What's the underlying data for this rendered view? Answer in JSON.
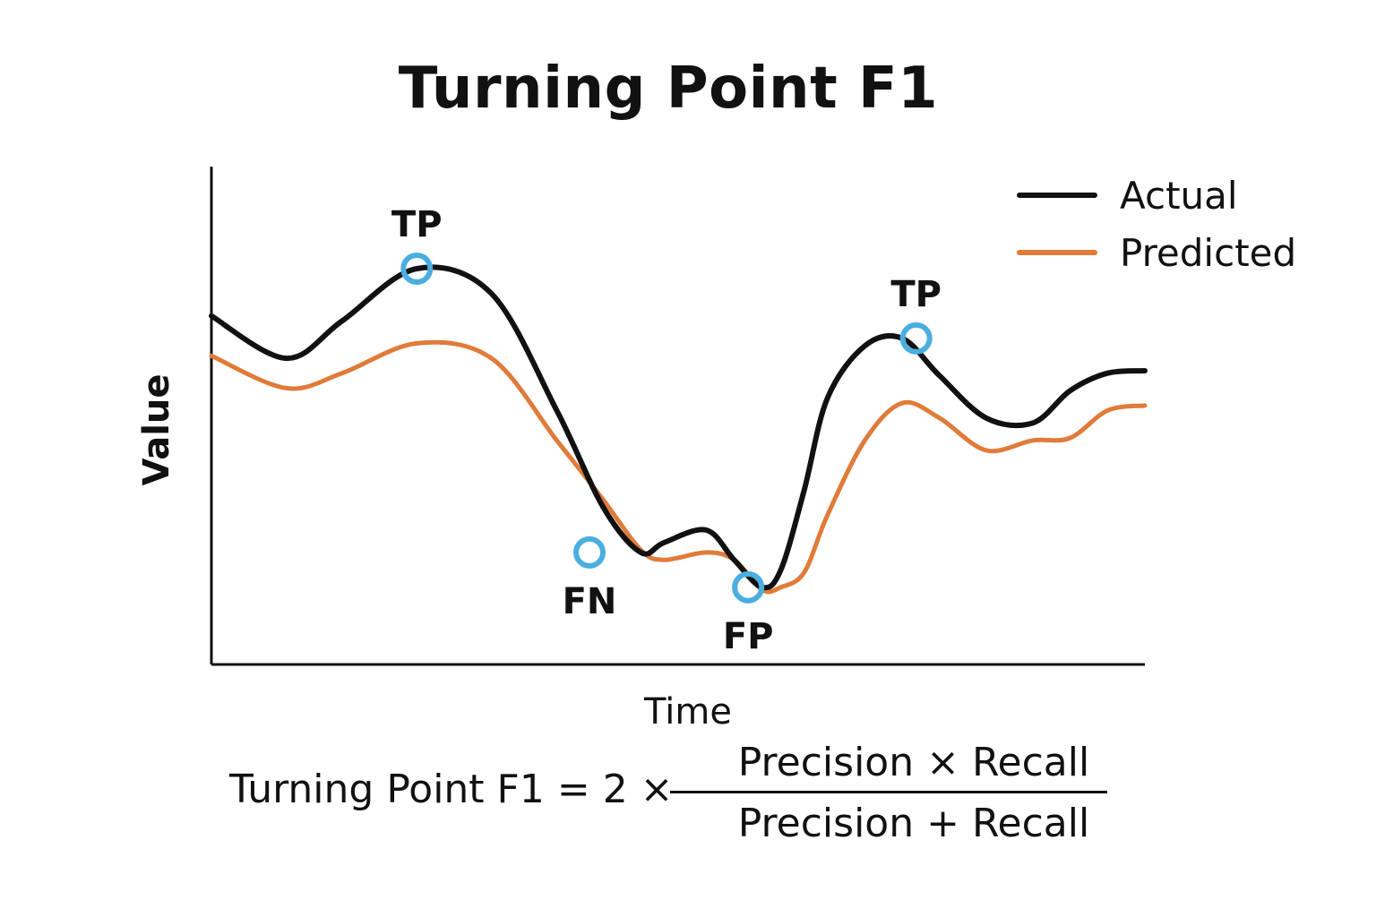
{
  "chart_data": {
    "type": "line",
    "title": "Turning Point F1",
    "xlabel": "Time",
    "ylabel": "Value",
    "xlim": [
      0,
      100
    ],
    "ylim": [
      0,
      100
    ],
    "grid": false,
    "legend_position": "top-right",
    "x": [
      0,
      8,
      14,
      22,
      30,
      37,
      42,
      46,
      48.5,
      53,
      56,
      59,
      61,
      63.5,
      66,
      70,
      74,
      78,
      83,
      88,
      92,
      96,
      100
    ],
    "series": [
      {
        "name": "Actual",
        "color": "#111111",
        "values": [
          70,
          61.5,
          69,
          79.5,
          74.5,
          51,
          31.5,
          22.5,
          24.5,
          27,
          21,
          15.5,
          19,
          35,
          53.5,
          64,
          65.5,
          58,
          49.5,
          48.5,
          55,
          58.5,
          59
        ]
      },
      {
        "name": "Predicted",
        "color": "#e07b39",
        "values": [
          62,
          55.5,
          58.5,
          64.5,
          61.5,
          45,
          33,
          23,
          21,
          22.5,
          21,
          15,
          15.5,
          18.5,
          30,
          45,
          52.5,
          49.5,
          43,
          45,
          45.5,
          51,
          52
        ]
      }
    ],
    "markers": [
      {
        "label": "TP",
        "x": 22,
        "y": 79.5,
        "label_position": "above",
        "color": "#4aaee0"
      },
      {
        "label": "FN",
        "x": 40.5,
        "y": 22.5,
        "label_position": "below",
        "color": "#4aaee0"
      },
      {
        "label": "FP",
        "x": 57.5,
        "y": 15.5,
        "label_position": "below",
        "color": "#4aaee0"
      },
      {
        "label": "TP",
        "x": 75.5,
        "y": 65.5,
        "label_position": "above",
        "color": "#4aaee0"
      }
    ]
  },
  "formula": {
    "lhs": "Turning Point F1 = 2 ×",
    "numerator": "Precision × Recall",
    "denominator": "Precision + Recall"
  }
}
